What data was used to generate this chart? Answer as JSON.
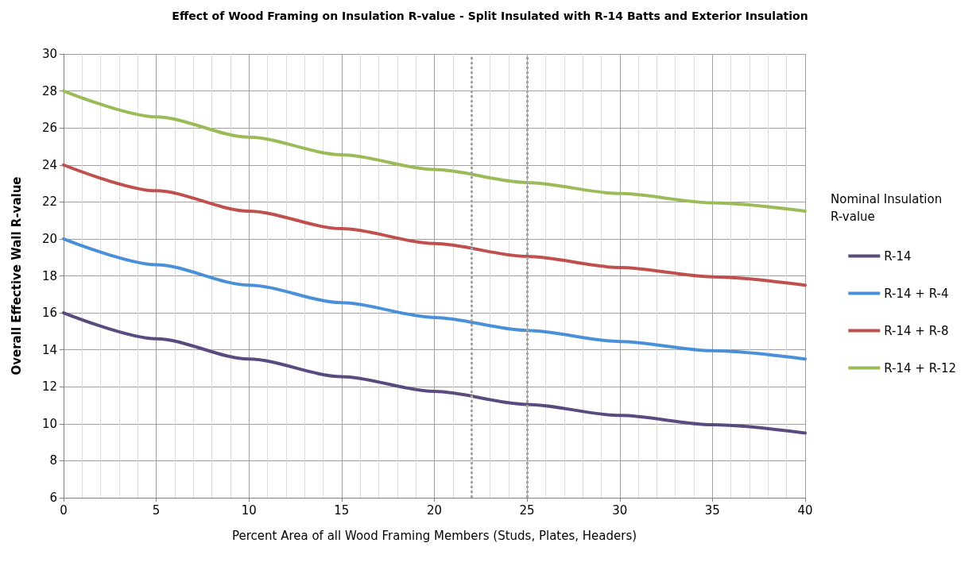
{
  "chart_data": {
    "type": "line",
    "title": "Effect of Wood Framing on Insulation R-value - Split Insulated with R-14 Batts and Exterior Insulation",
    "xlabel": "Percent Area of all Wood Framing Members (Studs, Plates, Headers)",
    "ylabel": "Overall Effective Wall R-value",
    "legend_title": "Nominal Insulation R-value",
    "x": [
      0,
      5,
      10,
      15,
      20,
      25,
      30,
      35,
      40
    ],
    "series": [
      {
        "name": "R-14",
        "color": "#5b4a80",
        "values": [
          16,
          14.6,
          13.5,
          12.55,
          11.75,
          11.05,
          10.45,
          9.95,
          9.5
        ]
      },
      {
        "name": "R-14 + R-4",
        "color": "#4a90d9",
        "values": [
          20,
          18.6,
          17.5,
          16.55,
          15.75,
          15.05,
          14.45,
          13.95,
          13.5
        ]
      },
      {
        "name": "R-14 + R-8",
        "color": "#c0504d",
        "values": [
          24,
          22.6,
          21.5,
          20.55,
          19.75,
          19.05,
          18.45,
          17.95,
          17.5
        ]
      },
      {
        "name": "R-14 + R-12",
        "color": "#9bbb59",
        "values": [
          28,
          26.6,
          25.5,
          24.55,
          23.75,
          23.05,
          22.45,
          21.95,
          21.5
        ]
      }
    ],
    "xlim": [
      0,
      40
    ],
    "xticks": [
      0,
      5,
      10,
      15,
      20,
      25,
      30,
      35,
      40
    ],
    "ylim": [
      6,
      30
    ],
    "yticks": [
      6,
      8,
      10,
      12,
      14,
      16,
      18,
      20,
      22,
      24,
      26,
      28,
      30
    ],
    "ref_lines": [
      {
        "axis": "x",
        "value": 22,
        "color": "#a6a6a6",
        "line_style": "dotted"
      },
      {
        "axis": "x",
        "value": 25,
        "color": "#a6a6a6",
        "line_style": "dotted"
      }
    ],
    "grid": true,
    "legend": "right",
    "marker": "none",
    "line_style": "solid"
  }
}
